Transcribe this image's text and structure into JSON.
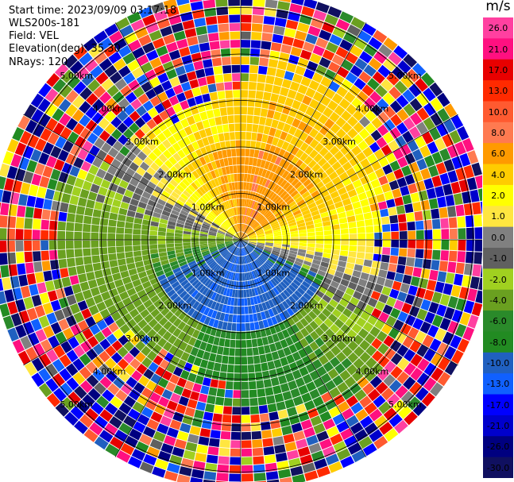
{
  "header": {
    "start_time": "Start time: 2023/09/09 03:17:18",
    "station": "WLS200s-181",
    "field": "Field: VEL",
    "elevation": "Elevation(deg): 35.30",
    "nrays": "NRays: 120"
  },
  "colorbar": {
    "unit": "m/s",
    "ticks": [
      "26.0",
      "21.0",
      "17.0",
      "13.0",
      "10.0",
      "8.0",
      "6.0",
      "4.0",
      "2.0",
      "1.0",
      "0.0",
      "-1.0",
      "-2.0",
      "-4.0",
      "-6.0",
      "-8.0",
      "-10.0",
      "-13.0",
      "-17.0",
      "-21.0",
      "-26.0",
      "-30.0"
    ],
    "colors": [
      "#ff40a0",
      "#ff1080",
      "#e80000",
      "#ff2a00",
      "#ff5a30",
      "#ff7a50",
      "#ff9a00",
      "#ffcc00",
      "#ffff00",
      "#ffe640",
      "#808080",
      "#606060",
      "#a0d020",
      "#6aa020",
      "#2a8a2a",
      "#228b22",
      "#2060c0",
      "#1060ff",
      "#0000ff",
      "#0000cc",
      "#000080",
      "#101060"
    ]
  },
  "chart_data": {
    "type": "heatmap",
    "subtype": "PPI polar plot",
    "field": "VEL",
    "units": "m/s",
    "nrays": 120,
    "range_rings_km": [
      1.0,
      2.0,
      3.0,
      4.0,
      5.0
    ],
    "ring_labels": [
      "1.00km",
      "2.00km",
      "3.00km",
      "4.00km",
      "5.00km"
    ],
    "max_range_km": 5.4,
    "pattern": "near-range couplet: positive (orange/red) to north, negative (blue) to south, green west, yellow/gray east; noisy far range"
  }
}
